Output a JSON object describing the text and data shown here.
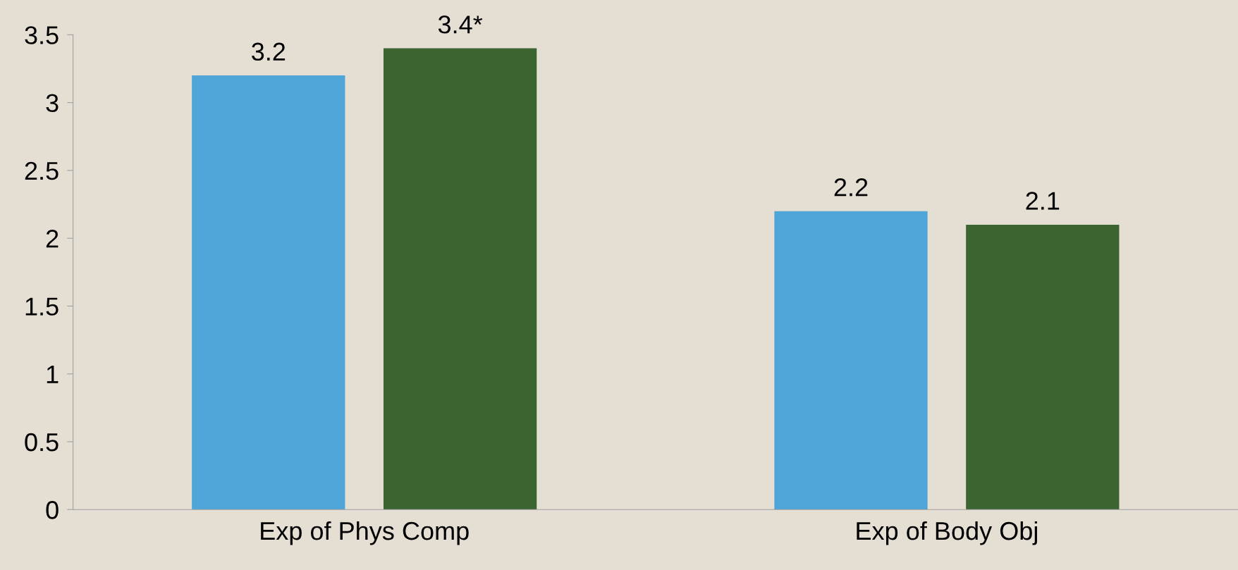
{
  "chart_data": {
    "type": "bar",
    "categories": [
      "Exp of Phys Comp",
      "Exp of Body Obj"
    ],
    "series": [
      {
        "color": "#4fa5d8",
        "values": [
          3.2,
          2.2
        ],
        "value_labels": [
          "3.2",
          "2.2"
        ]
      },
      {
        "color": "#3b6431",
        "values": [
          3.4,
          2.1
        ],
        "value_labels": [
          "3.4*",
          "2.1"
        ]
      }
    ],
    "ylim": [
      0,
      3.5
    ],
    "yticks": [
      0,
      0.5,
      1,
      1.5,
      2,
      2.5,
      3,
      3.5
    ],
    "grid": false,
    "legend": false
  }
}
